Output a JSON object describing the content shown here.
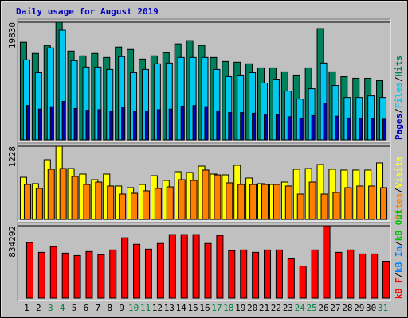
{
  "title": "Daily usage for August 2019",
  "legend_separator": "/",
  "x_axis": {
    "categories": [
      "1",
      "2",
      "3",
      "4",
      "5",
      "6",
      "7",
      "8",
      "9",
      "10",
      "11",
      "12",
      "13",
      "14",
      "15",
      "16",
      "17",
      "18",
      "19",
      "20",
      "21",
      "22",
      "23",
      "24",
      "25",
      "26",
      "27",
      "28",
      "29",
      "30",
      "31"
    ],
    "colors": [
      "#000000",
      "#000000",
      "#008040",
      "#008040",
      "#000000",
      "#000000",
      "#000000",
      "#000000",
      "#000000",
      "#008040",
      "#008040",
      "#000000",
      "#000000",
      "#000000",
      "#000000",
      "#000000",
      "#008040",
      "#008040",
      "#000000",
      "#000000",
      "#000000",
      "#000000",
      "#000000",
      "#008040",
      "#008040",
      "#000000",
      "#000000",
      "#000000",
      "#000000",
      "#000000",
      "#008040"
    ]
  },
  "chart_data": [
    {
      "type": "bar",
      "ylim": [
        0,
        19830
      ],
      "yticks": [
        19830
      ],
      "series": [
        {
          "name": "Hits",
          "color": "#00805c",
          "values": [
            16460,
            14570,
            15920,
            19830,
            14970,
            14160,
            14570,
            13890,
            15650,
            15240,
            13620,
            14160,
            14700,
            16190,
            16730,
            15920,
            13890,
            13220,
            13090,
            12820,
            12140,
            12140,
            11470,
            10930,
            12140,
            18750,
            11470,
            10660,
            10390,
            10390,
            9980
          ]
        },
        {
          "name": "Files",
          "color": "#00c8f0",
          "values": [
            13490,
            11330,
            15510,
            18480,
            13350,
            12280,
            12280,
            11870,
            14030,
            11330,
            11870,
            12820,
            12950,
            13890,
            13890,
            13890,
            11870,
            10660,
            10930,
            11330,
            9580,
            10250,
            8230,
            6880,
            8630,
            12950,
            9170,
            7150,
            7150,
            7420,
            7150
          ]
        },
        {
          "name": "Pages",
          "color": "#0000c0",
          "values": [
            5800,
            5200,
            5600,
            6500,
            5300,
            5000,
            5100,
            4900,
            5500,
            4800,
            4900,
            5100,
            5200,
            5700,
            5800,
            5600,
            4900,
            4600,
            4600,
            4500,
            4200,
            4300,
            3900,
            3600,
            4100,
            6200,
            4000,
            3700,
            3600,
            3600,
            3500
          ]
        }
      ]
    },
    {
      "type": "bar",
      "ylim": [
        0,
        1228
      ],
      "yticks": [
        1228
      ],
      "series": [
        {
          "name": "Visits",
          "color": "#ffff00",
          "values": [
            707,
            601,
            1001,
            1228,
            854,
            761,
            667,
            761,
            561,
            534,
            587,
            734,
            654,
            801,
            788,
            894,
            761,
            747,
            908,
            694,
            601,
            587,
            627,
            841,
            854,
            921,
            841,
            828,
            828,
            828,
            948
          ]
        },
        {
          "name": "Sites",
          "color": "#ff8000",
          "values": [
            587,
            521,
            841,
            854,
            721,
            587,
            627,
            561,
            427,
            440,
            481,
            521,
            547,
            667,
            654,
            828,
            747,
            614,
            587,
            587,
            587,
            587,
            561,
            427,
            627,
            427,
            454,
            534,
            561,
            561,
            534
          ]
        }
      ]
    },
    {
      "type": "bar",
      "ylim": [
        0,
        834292
      ],
      "yticks": [
        834292
      ],
      "series": [
        {
          "name": "kB Out",
          "color": "#00c000",
          "values": [
            0,
            0,
            0,
            0,
            0,
            0,
            0,
            0,
            0,
            0,
            0,
            0,
            0,
            0,
            0,
            0,
            0,
            0,
            0,
            0,
            0,
            0,
            0,
            0,
            0,
            0,
            0,
            0,
            0,
            0,
            0
          ]
        },
        {
          "name": "kB In",
          "color": "#0080ff",
          "values": [
            0,
            0,
            0,
            0,
            0,
            0,
            0,
            0,
            0,
            0,
            0,
            0,
            0,
            0,
            0,
            0,
            0,
            0,
            0,
            0,
            0,
            0,
            0,
            0,
            0,
            0,
            0,
            0,
            0,
            0,
            0
          ]
        },
        {
          "name": "kB F",
          "color": "#ff0000",
          "values": [
            639620,
            528380,
            593270,
            519110,
            491300,
            537650,
            500580,
            556190,
            695240,
            621080,
            565460,
            630350,
            732320,
            732320,
            732320,
            630350,
            723050,
            546920,
            556190,
            528380,
            556190,
            556190,
            454220,
            370800,
            556190,
            834292,
            528380,
            556190,
            509840,
            509840,
            426410
          ]
        }
      ]
    }
  ]
}
